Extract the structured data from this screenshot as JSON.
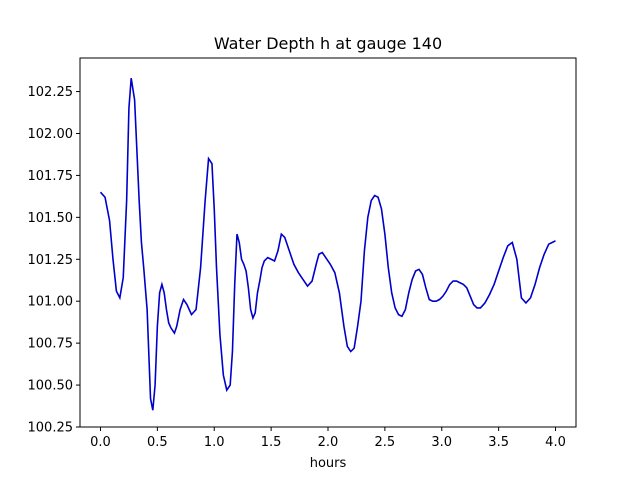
{
  "chart_data": {
    "type": "line",
    "title": "Water Depth h at gauge 140",
    "xlabel": "hours",
    "ylabel": "",
    "xlim": [
      -0.18,
      4.18
    ],
    "ylim": [
      100.25,
      102.45
    ],
    "grid": false,
    "legend": "none",
    "xticks": [
      0.0,
      0.5,
      1.0,
      1.5,
      2.0,
      2.5,
      3.0,
      3.5,
      4.0
    ],
    "xtick_labels": [
      "0.0",
      "0.5",
      "1.0",
      "1.5",
      "2.0",
      "2.5",
      "3.0",
      "3.5",
      "4.0"
    ],
    "yticks": [
      100.25,
      100.5,
      100.75,
      101.0,
      101.25,
      101.5,
      101.75,
      102.0,
      102.25
    ],
    "ytick_labels": [
      "100.25",
      "100.50",
      "100.75",
      "101.00",
      "101.25",
      "101.50",
      "101.75",
      "102.00",
      "102.25"
    ],
    "series": [
      {
        "name": "",
        "color": "#0000cc",
        "x": [
          0.0,
          0.04,
          0.08,
          0.11,
          0.14,
          0.17,
          0.2,
          0.23,
          0.25,
          0.27,
          0.3,
          0.32,
          0.34,
          0.36,
          0.38,
          0.41,
          0.44,
          0.46,
          0.48,
          0.5,
          0.52,
          0.54,
          0.56,
          0.58,
          0.6,
          0.62,
          0.65,
          0.67,
          0.7,
          0.73,
          0.76,
          0.8,
          0.84,
          0.88,
          0.92,
          0.95,
          0.98,
          1.0,
          1.02,
          1.05,
          1.08,
          1.11,
          1.14,
          1.16,
          1.18,
          1.2,
          1.22,
          1.24,
          1.26,
          1.28,
          1.3,
          1.32,
          1.34,
          1.36,
          1.38,
          1.4,
          1.42,
          1.44,
          1.47,
          1.5,
          1.53,
          1.56,
          1.59,
          1.62,
          1.66,
          1.7,
          1.74,
          1.78,
          1.82,
          1.86,
          1.9,
          1.92,
          1.95,
          1.98,
          2.02,
          2.06,
          2.1,
          2.14,
          2.17,
          2.2,
          2.23,
          2.26,
          2.29,
          2.32,
          2.35,
          2.38,
          2.41,
          2.44,
          2.47,
          2.5,
          2.53,
          2.56,
          2.59,
          2.62,
          2.65,
          2.68,
          2.71,
          2.74,
          2.77,
          2.8,
          2.83,
          2.86,
          2.89,
          2.92,
          2.95,
          2.98,
          3.01,
          3.04,
          3.07,
          3.1,
          3.13,
          3.16,
          3.19,
          3.22,
          3.25,
          3.28,
          3.31,
          3.34,
          3.38,
          3.42,
          3.46,
          3.5,
          3.54,
          3.58,
          3.62,
          3.66,
          3.7,
          3.74,
          3.78,
          3.82,
          3.86,
          3.9,
          3.94,
          3.97,
          4.0
        ],
        "y": [
          101.65,
          101.62,
          101.48,
          101.25,
          101.06,
          101.02,
          101.14,
          101.6,
          102.15,
          102.33,
          102.2,
          101.9,
          101.6,
          101.35,
          101.2,
          100.95,
          100.42,
          100.35,
          100.5,
          100.85,
          101.05,
          101.1,
          101.05,
          100.95,
          100.87,
          100.84,
          100.81,
          100.85,
          100.95,
          101.01,
          100.98,
          100.92,
          100.95,
          101.2,
          101.6,
          101.85,
          101.82,
          101.55,
          101.2,
          100.8,
          100.56,
          100.47,
          100.5,
          100.7,
          101.1,
          101.4,
          101.35,
          101.25,
          101.22,
          101.18,
          101.08,
          100.95,
          100.9,
          100.93,
          101.05,
          101.12,
          101.2,
          101.24,
          101.26,
          101.25,
          101.24,
          101.3,
          101.4,
          101.38,
          101.3,
          101.22,
          101.17,
          101.13,
          101.09,
          101.12,
          101.23,
          101.28,
          101.29,
          101.26,
          101.22,
          101.17,
          101.05,
          100.85,
          100.73,
          100.7,
          100.72,
          100.85,
          101.0,
          101.3,
          101.5,
          101.6,
          101.63,
          101.62,
          101.55,
          101.4,
          101.2,
          101.05,
          100.96,
          100.92,
          100.91,
          100.95,
          101.05,
          101.13,
          101.18,
          101.19,
          101.16,
          101.08,
          101.01,
          101.0,
          101.0,
          101.01,
          101.03,
          101.06,
          101.1,
          101.12,
          101.12,
          101.11,
          101.1,
          101.08,
          101.03,
          100.98,
          100.96,
          100.96,
          100.99,
          101.04,
          101.1,
          101.18,
          101.26,
          101.33,
          101.35,
          101.25,
          101.02,
          100.99,
          101.02,
          101.1,
          101.2,
          101.28,
          101.34,
          101.35,
          101.36
        ]
      }
    ]
  }
}
